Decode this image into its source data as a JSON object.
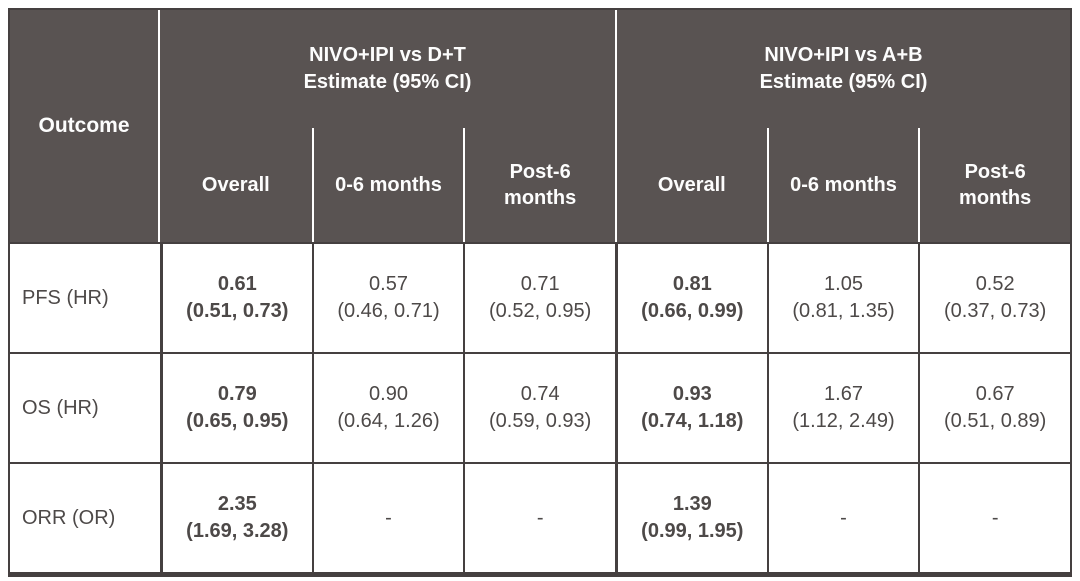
{
  "colors": {
    "header_background": "#595352",
    "header_text": "#ffffff",
    "body_text": "#4d4948",
    "border": "#454040",
    "page_background": "#ffffff",
    "header_divider": "#ffffff"
  },
  "table": {
    "outcome_header": "Outcome",
    "groups": [
      {
        "title": "NIVO+IPI vs D+T\nEstimate (95% CI)",
        "subcolumns": [
          "Overall",
          "0-6 months",
          "Post-6 months"
        ]
      },
      {
        "title": "NIVO+IPI vs A+B\nEstimate (95% CI)",
        "subcolumns": [
          "Overall",
          "0-6 months",
          "Post-6 months"
        ]
      }
    ],
    "rows": [
      {
        "outcome": "PFS (HR)",
        "cells": [
          "0.61\n(0.51, 0.73)",
          "0.57\n(0.46, 0.71)",
          "0.71\n(0.52, 0.95)",
          "0.81\n(0.66, 0.99)",
          "1.05\n(0.81, 1.35)",
          "0.52\n(0.37, 0.73)"
        ]
      },
      {
        "outcome": "OS (HR)",
        "cells": [
          "0.79\n(0.65, 0.95)",
          "0.90\n(0.64, 1.26)",
          "0.74\n(0.59, 0.93)",
          "0.93\n(0.74, 1.18)",
          "1.67\n(1.12, 2.49)",
          "0.67\n(0.51, 0.89)"
        ]
      },
      {
        "outcome": "ORR (OR)",
        "cells": [
          "2.35\n(1.69, 3.28)",
          "-",
          "-",
          "1.39\n(0.99, 1.95)",
          "-",
          "-"
        ]
      }
    ]
  },
  "chart_data": {
    "type": "table",
    "column_groups": [
      {
        "group": "Outcome",
        "columns": [
          "Outcome"
        ]
      },
      {
        "group": "NIVO+IPI vs D+T Estimate (95% CI)",
        "columns": [
          "Overall",
          "0-6 months",
          "Post-6 months"
        ]
      },
      {
        "group": "NIVO+IPI vs A+B Estimate (95% CI)",
        "columns": [
          "Overall",
          "0-6 months",
          "Post-6 months"
        ]
      }
    ],
    "rows": [
      {
        "outcome": "PFS (HR)",
        "nivo_ipi_vs_dt": {
          "overall": {
            "estimate": 0.61,
            "ci_lower": 0.51,
            "ci_upper": 0.73
          },
          "months_0_6": {
            "estimate": 0.57,
            "ci_lower": 0.46,
            "ci_upper": 0.71
          },
          "post_6_months": {
            "estimate": 0.71,
            "ci_lower": 0.52,
            "ci_upper": 0.95
          }
        },
        "nivo_ipi_vs_ab": {
          "overall": {
            "estimate": 0.81,
            "ci_lower": 0.66,
            "ci_upper": 0.99
          },
          "months_0_6": {
            "estimate": 1.05,
            "ci_lower": 0.81,
            "ci_upper": 1.35
          },
          "post_6_months": {
            "estimate": 0.52,
            "ci_lower": 0.37,
            "ci_upper": 0.73
          }
        }
      },
      {
        "outcome": "OS (HR)",
        "nivo_ipi_vs_dt": {
          "overall": {
            "estimate": 0.79,
            "ci_lower": 0.65,
            "ci_upper": 0.95
          },
          "months_0_6": {
            "estimate": 0.9,
            "ci_lower": 0.64,
            "ci_upper": 1.26
          },
          "post_6_months": {
            "estimate": 0.74,
            "ci_lower": 0.59,
            "ci_upper": 0.93
          }
        },
        "nivo_ipi_vs_ab": {
          "overall": {
            "estimate": 0.93,
            "ci_lower": 0.74,
            "ci_upper": 1.18
          },
          "months_0_6": {
            "estimate": 1.67,
            "ci_lower": 1.12,
            "ci_upper": 2.49
          },
          "post_6_months": {
            "estimate": 0.67,
            "ci_lower": 0.51,
            "ci_upper": 0.89
          }
        }
      },
      {
        "outcome": "ORR (OR)",
        "nivo_ipi_vs_dt": {
          "overall": {
            "estimate": 2.35,
            "ci_lower": 1.69,
            "ci_upper": 3.28
          },
          "months_0_6": null,
          "post_6_months": null
        },
        "nivo_ipi_vs_ab": {
          "overall": {
            "estimate": 1.39,
            "ci_lower": 0.99,
            "ci_upper": 1.95
          },
          "months_0_6": null,
          "post_6_months": null
        }
      }
    ]
  }
}
